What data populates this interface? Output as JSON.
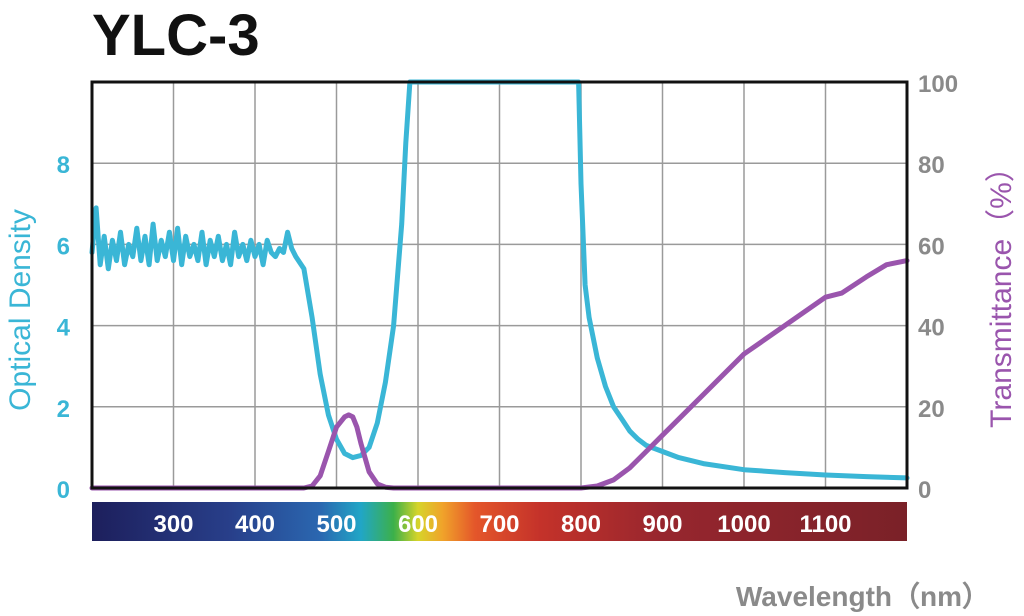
{
  "colors": {
    "od": "#3ab6d6",
    "transmittance": "#9a55ad",
    "axis_text": "#8a8a8a",
    "frame": "#111111",
    "grid": "#9a9a9a"
  },
  "chart_data": {
    "type": "line",
    "title": "YLC-3",
    "xlabel": "Wavelength（nm）",
    "xlim": [
      200,
      1200
    ],
    "x_tick_labels": [
      "300",
      "400",
      "500",
      "600",
      "700",
      "800",
      "900",
      "1000",
      "1100"
    ],
    "x_ticks": [
      300,
      400,
      500,
      600,
      700,
      800,
      900,
      1000,
      1100
    ],
    "left_axis": {
      "label": "Optical Density",
      "ylim": [
        0,
        10
      ],
      "ticks": [
        0,
        2,
        4,
        6,
        8
      ],
      "tick_labels": [
        "0",
        "2",
        "4",
        "6",
        "8"
      ]
    },
    "right_axis": {
      "label": "Transmittance（%）",
      "ylim": [
        0,
        100
      ],
      "ticks": [
        0,
        20,
        40,
        60,
        80,
        100
      ],
      "tick_labels": [
        "0",
        "20",
        "40",
        "60",
        "80",
        "100"
      ]
    },
    "grid": true,
    "colorbar": "visible spectrum",
    "series": [
      {
        "name": "",
        "axis": "left",
        "x": [
          200,
          205,
          210,
          215,
          220,
          225,
          230,
          235,
          240,
          245,
          250,
          255,
          260,
          265,
          270,
          275,
          280,
          285,
          290,
          295,
          300,
          305,
          310,
          315,
          320,
          325,
          330,
          335,
          340,
          345,
          350,
          355,
          360,
          365,
          370,
          375,
          380,
          385,
          390,
          395,
          400,
          405,
          410,
          415,
          420,
          425,
          430,
          435,
          440,
          445,
          450,
          460,
          470,
          480,
          490,
          500,
          510,
          520,
          530,
          540,
          550,
          560,
          570,
          580,
          585,
          590,
          594,
          797,
          800,
          805,
          810,
          820,
          830,
          840,
          850,
          860,
          870,
          880,
          900,
          920,
          950,
          1000,
          1050,
          1100,
          1150,
          1200
        ],
        "y": [
          5.8,
          6.9,
          5.5,
          6.2,
          5.4,
          6.1,
          5.6,
          6.3,
          5.5,
          6.0,
          5.7,
          6.4,
          5.6,
          6.2,
          5.5,
          6.5,
          5.6,
          6.1,
          5.7,
          6.3,
          5.6,
          6.4,
          5.5,
          6.2,
          5.7,
          6.0,
          5.6,
          6.3,
          5.5,
          6.1,
          5.7,
          6.2,
          5.6,
          6.0,
          5.5,
          6.3,
          5.7,
          6.0,
          5.6,
          6.1,
          5.7,
          6.0,
          5.5,
          6.1,
          5.8,
          5.7,
          5.9,
          5.8,
          6.3,
          5.9,
          5.7,
          5.4,
          4.2,
          2.8,
          1.8,
          1.2,
          0.85,
          0.75,
          0.8,
          1.0,
          1.6,
          2.6,
          4.0,
          6.5,
          8.5,
          10.0,
          10.0,
          10.0,
          7.5,
          5.0,
          4.2,
          3.2,
          2.5,
          2.0,
          1.7,
          1.4,
          1.2,
          1.05,
          0.9,
          0.75,
          0.6,
          0.45,
          0.38,
          0.32,
          0.28,
          0.25
        ]
      },
      {
        "name": "",
        "axis": "right",
        "x": [
          200,
          460,
          470,
          480,
          490,
          500,
          510,
          515,
          520,
          525,
          530,
          540,
          550,
          560,
          570,
          800,
          820,
          840,
          860,
          880,
          900,
          950,
          1000,
          1050,
          1100,
          1120,
          1150,
          1175,
          1200
        ],
        "y": [
          0,
          0,
          0.5,
          3,
          9,
          15,
          17.5,
          18,
          17.5,
          15,
          11,
          4,
          1,
          0.2,
          0,
          0,
          0.5,
          2,
          5,
          9,
          13,
          23,
          33,
          40,
          47,
          48,
          52,
          55,
          56
        ]
      }
    ]
  }
}
